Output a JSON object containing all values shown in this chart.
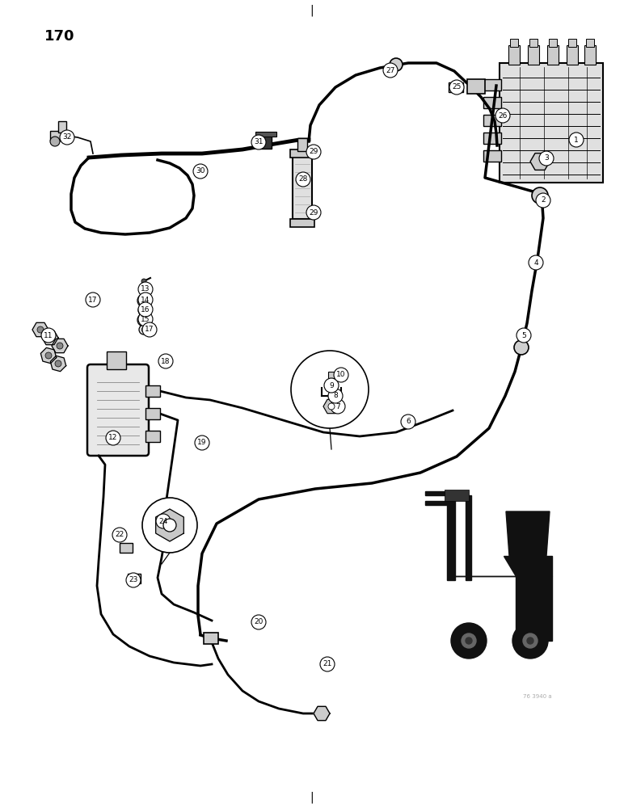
{
  "bg_color": "#ffffff",
  "page_number": "170",
  "watermark": "76 3940 a",
  "line_color": "#000000",
  "title_marker_top": "|",
  "title_marker_bottom": "|",
  "labels": [
    [
      "1",
      713,
      173
    ],
    [
      "2",
      672,
      248
    ],
    [
      "3",
      676,
      196
    ],
    [
      "4",
      663,
      325
    ],
    [
      "5",
      648,
      415
    ],
    [
      "6",
      505,
      522
    ],
    [
      "7",
      418,
      503
    ],
    [
      "8",
      415,
      490
    ],
    [
      "9",
      410,
      477
    ],
    [
      "10",
      422,
      464
    ],
    [
      "11",
      60,
      415
    ],
    [
      "12",
      140,
      542
    ],
    [
      "13",
      180,
      358
    ],
    [
      "14",
      180,
      371
    ],
    [
      "15",
      180,
      395
    ],
    [
      "16",
      180,
      383
    ],
    [
      "17",
      115,
      371
    ],
    [
      "17",
      185,
      408
    ],
    [
      "18",
      205,
      447
    ],
    [
      "19",
      250,
      548
    ],
    [
      "20",
      320,
      770
    ],
    [
      "21",
      405,
      822
    ],
    [
      "22",
      148,
      662
    ],
    [
      "23",
      165,
      718
    ],
    [
      "24",
      202,
      645
    ],
    [
      "25",
      565,
      108
    ],
    [
      "26",
      622,
      143
    ],
    [
      "27",
      483,
      87
    ],
    [
      "28",
      375,
      222
    ],
    [
      "29",
      388,
      188
    ],
    [
      "29",
      388,
      263
    ],
    [
      "30",
      248,
      212
    ],
    [
      "31",
      320,
      176
    ],
    [
      "32",
      83,
      170
    ]
  ]
}
